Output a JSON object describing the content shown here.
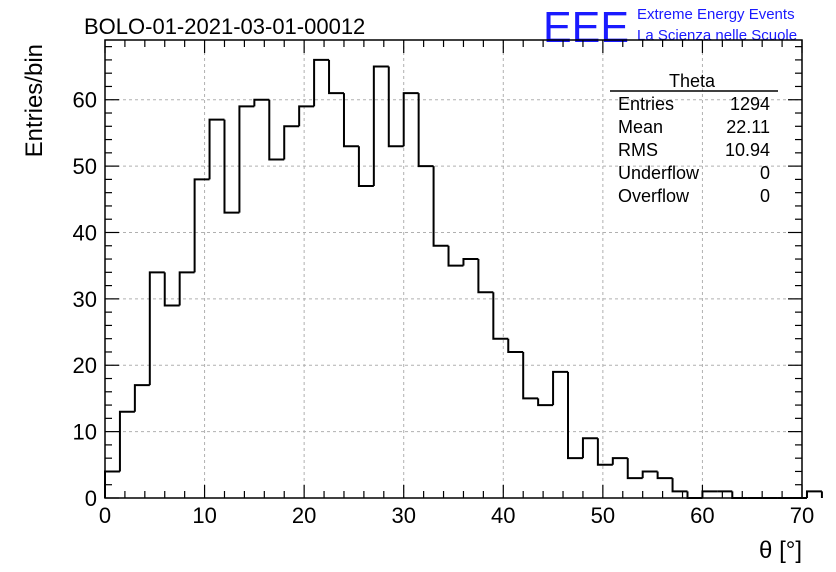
{
  "chart_data": {
    "type": "histogram",
    "title": "BOLO-01-2021-03-01-00012",
    "xlabel": "θ [°]",
    "ylabel": "Entries/bin",
    "xlim": [
      0,
      70
    ],
    "ylim": [
      0,
      69
    ],
    "bin_width": 1.5,
    "xticks": [
      "0",
      "10",
      "20",
      "30",
      "40",
      "50",
      "60",
      "70"
    ],
    "yticks": [
      "0",
      "10",
      "20",
      "30",
      "40",
      "50",
      "60"
    ],
    "grid": true,
    "line_color": "#000000",
    "values": [
      4,
      13,
      17,
      34,
      29,
      34,
      48,
      57,
      43,
      59,
      60,
      51,
      56,
      59,
      66,
      61,
      53,
      47,
      65,
      53,
      61,
      50,
      38,
      35,
      36,
      31,
      24,
      22,
      15,
      14,
      19,
      6,
      9,
      5,
      6,
      3,
      4,
      3,
      1,
      0,
      1,
      1,
      0,
      0,
      0,
      0,
      0,
      1
    ]
  },
  "stats": {
    "name": "Theta",
    "rows": [
      {
        "label": "Entries",
        "value": "1294"
      },
      {
        "label": "Mean",
        "value": "22.11"
      },
      {
        "label": "RMS",
        "value": "10.94"
      },
      {
        "label": "Underflow",
        "value": "0"
      },
      {
        "label": "Overflow",
        "value": "0"
      }
    ]
  },
  "logo": {
    "mark": "EEE",
    "line1": "Extreme Energy Events",
    "line2": "La Scienza nelle Scuole",
    "color": "#1a1aff"
  }
}
